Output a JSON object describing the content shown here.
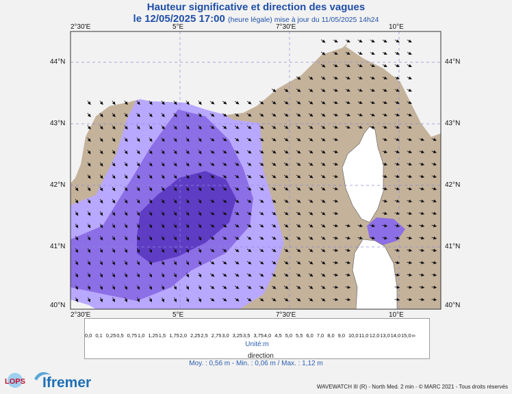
{
  "header": {
    "title": "Hauteur significative et direction des vagues",
    "date": "le 12/05/2025 17:00",
    "legal_note": "(heure légale) mise à jour du 11/05/2025 14h24"
  },
  "axes": {
    "lon_labels": [
      "2°30'E",
      "5°E",
      "7°30'E",
      "10°E"
    ],
    "lat_labels": [
      "44°N",
      "43°N",
      "42°N",
      "41°N",
      "40°N"
    ]
  },
  "legend": {
    "values": [
      "0,0",
      "0,1",
      "0,25",
      "0,5",
      "0,75",
      "1,0",
      "1,25",
      "1,5",
      "1,75",
      "2,0",
      "2,25",
      "2,5",
      "2,75",
      "3,0",
      "3,25",
      "3,5",
      "3,75",
      "4,0",
      "4,5",
      "5,0",
      "5,5",
      "6,0",
      "7,0",
      "8,0",
      "9,0",
      "10,0",
      "11,0",
      "12,0",
      "13,0",
      "14,0",
      "15,0",
      "∞"
    ],
    "colors": [
      "#e9d4c0",
      "#dcc6ae",
      "#cdb49b",
      "#c5b3a5",
      "#b9a8ff",
      "#8c6ee6",
      "#5f3cc4",
      "#8ff0ff",
      "#4fd2ff",
      "#1ea0ff",
      "#1463e6",
      "#0a2fc8",
      "#d8ff94",
      "#9aff58",
      "#3ee63e",
      "#15c815",
      "#0fa00f",
      "#fff200",
      "#ffd000",
      "#ffa500",
      "#ff7d2a",
      "#ff5050",
      "#ffb4b4",
      "#e07878",
      "#b45a3c",
      "#8c3c14",
      "#c80000",
      "#a00000",
      "#780000",
      "#ff00ff",
      "#a0008c"
    ],
    "unit": "Unité:m",
    "direction_label": "direction"
  },
  "stats": {
    "text": "Moy. : 0,56 m   -   Min. : 0,06 m / Max. : 1,12 m"
  },
  "footer": {
    "credit": "WAVEWATCH III (R) - North Med. 2 min - © MARC 2021 - Tous droits réservés",
    "logo_lops": "LOPS",
    "logo_ifremer": "Ifremer"
  }
}
